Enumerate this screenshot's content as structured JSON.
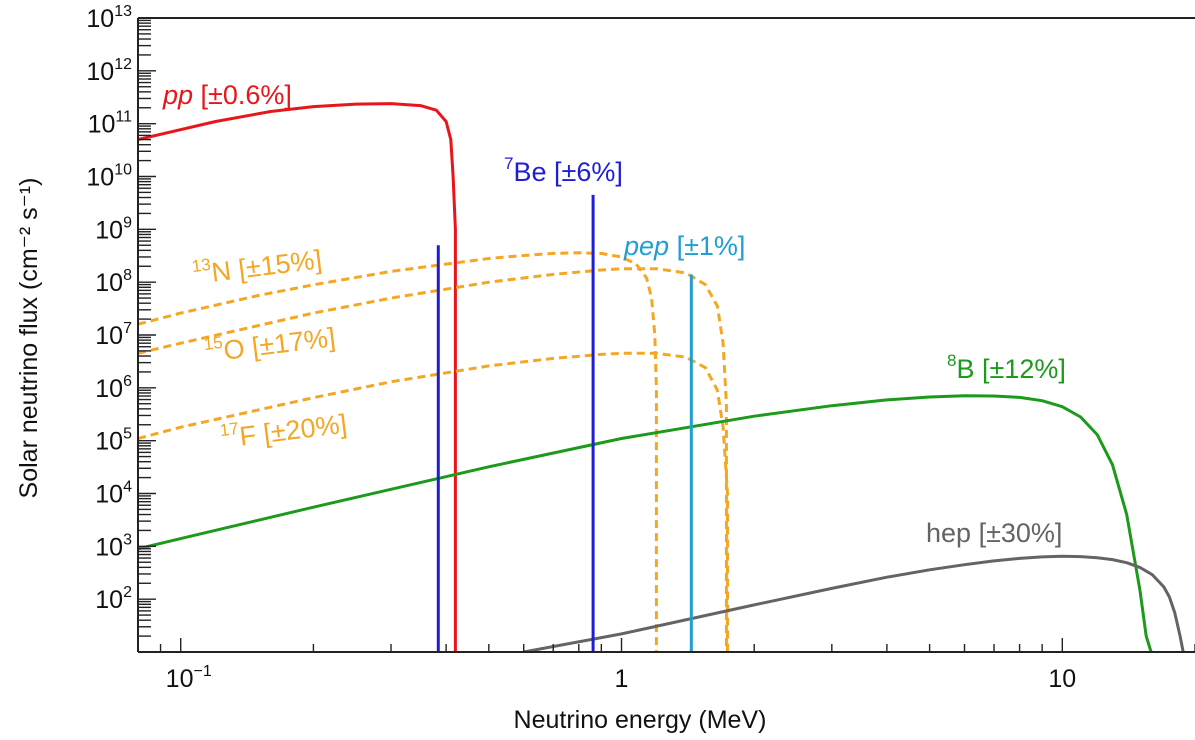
{
  "chart_data": {
    "type": "line",
    "xlabel": "Neutrino energy (MeV)",
    "ylabel": "Solar neutrino flux (cm⁻² s⁻¹)",
    "x_scale": "log",
    "y_scale": "log",
    "xlim": [
      0.08,
      20
    ],
    "ylim": [
      10,
      10000000000000.0
    ],
    "x_ticks": [
      {
        "value": 0.1,
        "mantissa": "10",
        "exp": "−1"
      },
      {
        "value": 1,
        "mantissa": "1",
        "exp": ""
      },
      {
        "value": 10,
        "mantissa": "10",
        "exp": ""
      }
    ],
    "y_ticks": [
      {
        "value": 100,
        "mantissa": "10",
        "exp": "2"
      },
      {
        "value": 1000,
        "mantissa": "10",
        "exp": "3"
      },
      {
        "value": 10000,
        "mantissa": "10",
        "exp": "4"
      },
      {
        "value": 100000,
        "mantissa": "10",
        "exp": "5"
      },
      {
        "value": 1000000,
        "mantissa": "10",
        "exp": "6"
      },
      {
        "value": 10000000,
        "mantissa": "10",
        "exp": "7"
      },
      {
        "value": 100000000,
        "mantissa": "10",
        "exp": "8"
      },
      {
        "value": 1000000000,
        "mantissa": "10",
        "exp": "9"
      },
      {
        "value": 10000000000,
        "mantissa": "10",
        "exp": "10"
      },
      {
        "value": 100000000000,
        "mantissa": "10",
        "exp": "11"
      },
      {
        "value": 1000000000000,
        "mantissa": "10",
        "exp": "12"
      },
      {
        "value": 10000000000000,
        "mantissa": "10",
        "exp": "13"
      }
    ],
    "series": [
      {
        "id": "pp",
        "label": "pp",
        "label_italic": true,
        "sup": "",
        "uncertainty": "[±0.6%]",
        "kind": "continuum",
        "color": "#e8151b",
        "dashed": false,
        "x": [
          0.08,
          0.12,
          0.16,
          0.2,
          0.25,
          0.3,
          0.35,
          0.38,
          0.4,
          0.41,
          0.415,
          0.42,
          0.42
        ],
        "y": [
          50000000000.0,
          110000000000.0,
          170000000000.0,
          210000000000.0,
          235000000000.0,
          240000000000.0,
          220000000000.0,
          180000000000.0,
          110000000000.0,
          50000000000.0,
          10000000000.0,
          1000000000.0,
          10
        ]
      },
      {
        "id": "n13",
        "label": "N",
        "label_italic": false,
        "sup": "13",
        "uncertainty": "[±15%]",
        "kind": "continuum",
        "color": "#f5a623",
        "dashed": true,
        "x": [
          0.08,
          0.1,
          0.15,
          0.2,
          0.3,
          0.4,
          0.5,
          0.6,
          0.7,
          0.8,
          0.9,
          1.0,
          1.08,
          1.14,
          1.17,
          1.19,
          1.2,
          1.2
        ],
        "y": [
          16000000.0,
          26000000.0,
          56000000.0,
          89000000.0,
          160000000.0,
          220000000.0,
          280000000.0,
          320000000.0,
          350000000.0,
          360000000.0,
          350000000.0,
          300000000.0,
          220000000.0,
          120000000.0,
          50000000.0,
          10000000.0,
          1000000.0,
          10
        ]
      },
      {
        "id": "o15",
        "label": "O",
        "label_italic": false,
        "sup": "15",
        "uncertainty": "[±17%]",
        "kind": "continuum",
        "color": "#f5a623",
        "dashed": true,
        "x": [
          0.08,
          0.1,
          0.2,
          0.3,
          0.5,
          0.7,
          0.9,
          1.0,
          1.2,
          1.4,
          1.55,
          1.65,
          1.7,
          1.73,
          1.73
        ],
        "y": [
          4500000.0,
          7000000.0,
          26000000.0,
          50000000.0,
          100000000.0,
          140000000.0,
          170000000.0,
          180000000.0,
          180000000.0,
          150000000.0,
          90000000.0,
          35000000.0,
          7000000.0,
          500000.0,
          10
        ]
      },
      {
        "id": "f17",
        "label": "F",
        "label_italic": false,
        "sup": "17",
        "uncertainty": "[±20%]",
        "kind": "continuum",
        "color": "#f5a623",
        "dashed": true,
        "x": [
          0.08,
          0.1,
          0.2,
          0.3,
          0.5,
          0.7,
          0.9,
          1.0,
          1.2,
          1.4,
          1.55,
          1.65,
          1.7,
          1.74,
          1.74
        ],
        "y": [
          110000.0,
          180000.0,
          650000.0,
          1300000.0,
          2600000.0,
          3600000.0,
          4300000.0,
          4500000.0,
          4500000.0,
          3800000.0,
          2400000.0,
          900000.0,
          180000.0,
          10000.0,
          10
        ]
      },
      {
        "id": "b8",
        "label": "B",
        "label_italic": false,
        "sup": "8",
        "uncertainty": "[±12%]",
        "kind": "continuum",
        "color": "#1b9a1b",
        "dashed": false,
        "x": [
          0.08,
          0.1,
          0.2,
          0.3,
          0.5,
          1,
          2,
          3,
          4,
          5,
          6,
          7,
          8,
          9,
          10,
          11,
          12,
          13,
          14,
          15,
          15.5,
          15.9
        ],
        "y": [
          900,
          1400,
          5500,
          12000.0,
          32000.0,
          110000.0,
          290000.0,
          460000.0,
          590000.0,
          670000.0,
          710000.0,
          700000.0,
          660000.0,
          570000.0,
          440000.0,
          280000.0,
          130000.0,
          35000.0,
          4000.0,
          150,
          20,
          10
        ]
      },
      {
        "id": "hep",
        "label": "hep",
        "label_italic": false,
        "sup": "",
        "uncertainty": "[±30%]",
        "kind": "continuum",
        "color": "#646464",
        "dashed": false,
        "x": [
          0.6,
          1,
          2,
          3,
          4,
          5,
          6,
          7,
          8,
          9,
          10,
          11,
          12,
          13,
          14,
          15,
          16,
          17,
          17.5,
          18,
          18.5,
          18.8
        ],
        "y": [
          10,
          22,
          78,
          160,
          260,
          360,
          450,
          530,
          590,
          630,
          650,
          640,
          610,
          560,
          490,
          400,
          290,
          170,
          110,
          55,
          20,
          10
        ]
      },
      {
        "id": "be7_low",
        "label": "Be",
        "label_italic": false,
        "sup": "7",
        "uncertainty": "[±6%]",
        "kind": "line",
        "color": "#1e1ed6",
        "dashed": false,
        "x": [
          0.384
        ],
        "y": [
          500000000.0
        ]
      },
      {
        "id": "be7_high",
        "label": "Be",
        "label_italic": false,
        "sup": "7",
        "uncertainty": "[±6%]",
        "kind": "line",
        "color": "#1e1ed6",
        "dashed": false,
        "x": [
          0.862
        ],
        "y": [
          4500000000.0
        ]
      },
      {
        "id": "pep",
        "label": "pep",
        "label_italic": true,
        "sup": "",
        "uncertainty": "[±1%]",
        "kind": "line",
        "color": "#1f9fd0",
        "dashed": false,
        "x": [
          1.44
        ],
        "y": [
          140000000.0
        ]
      }
    ],
    "labels": [
      {
        "series": "pp",
        "rotate": 0
      },
      {
        "series": "be7_high",
        "rotate": 0
      },
      {
        "series": "pep",
        "rotate": 0
      },
      {
        "series": "n13",
        "rotate": -7
      },
      {
        "series": "o15",
        "rotate": -7
      },
      {
        "series": "f17",
        "rotate": -7
      },
      {
        "series": "b8",
        "rotate": 0
      },
      {
        "series": "hep",
        "rotate": 0
      }
    ]
  }
}
